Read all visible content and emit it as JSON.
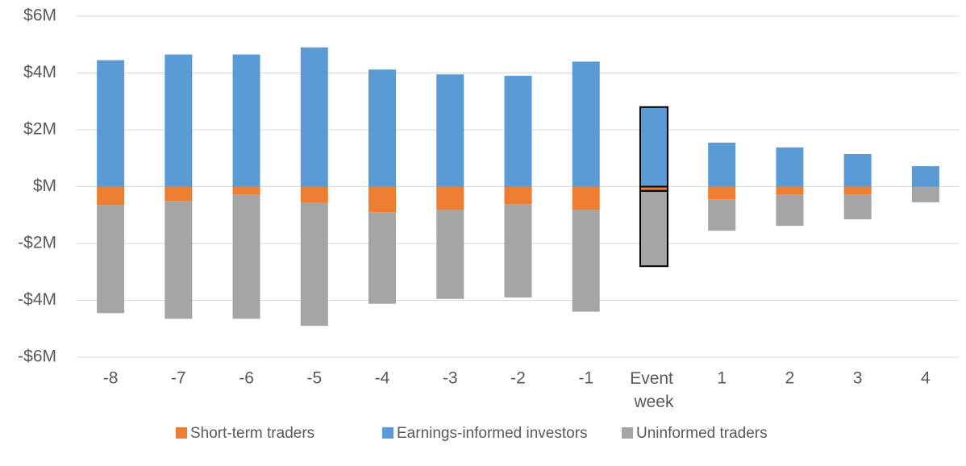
{
  "chart_data": {
    "type": "bar",
    "stacked": true,
    "categories": [
      "-8",
      "-7",
      "-6",
      "-5",
      "-4",
      "-3",
      "-2",
      "-1",
      "Event week",
      "1",
      "2",
      "3",
      "4"
    ],
    "series": [
      {
        "name": "Short-term traders",
        "color": "#ed7d31",
        "values": [
          -0.65,
          -0.5,
          -0.28,
          -0.57,
          -0.9,
          -0.82,
          -0.62,
          -0.82,
          -0.15,
          -0.45,
          -0.28,
          -0.28,
          0
        ]
      },
      {
        "name": "Earnings-informed investors",
        "color": "#5b9bd5",
        "values": [
          4.45,
          4.65,
          4.65,
          4.9,
          4.12,
          3.95,
          3.9,
          4.4,
          2.8,
          1.55,
          1.38,
          1.15,
          0.72
        ]
      },
      {
        "name": "Uninformed traders",
        "color": "#a5a5a5",
        "values": [
          -3.8,
          -4.15,
          -4.37,
          -4.33,
          -3.22,
          -3.13,
          -3.28,
          -3.58,
          -2.65,
          -1.1,
          -1.1,
          -0.87,
          -0.55
        ]
      }
    ],
    "highlight": "Event week",
    "ylim": [
      -6,
      6
    ],
    "yticks": [
      {
        "value": -6,
        "label": "-$6M"
      },
      {
        "value": -4,
        "label": "-$4M"
      },
      {
        "value": -2,
        "label": "-$2M"
      },
      {
        "value": 0,
        "label": "$M"
      },
      {
        "value": 2,
        "label": "$2M"
      },
      {
        "value": 4,
        "label": "$4M"
      },
      {
        "value": 6,
        "label": "$6M"
      }
    ],
    "grid": true,
    "legend": "bottom"
  }
}
